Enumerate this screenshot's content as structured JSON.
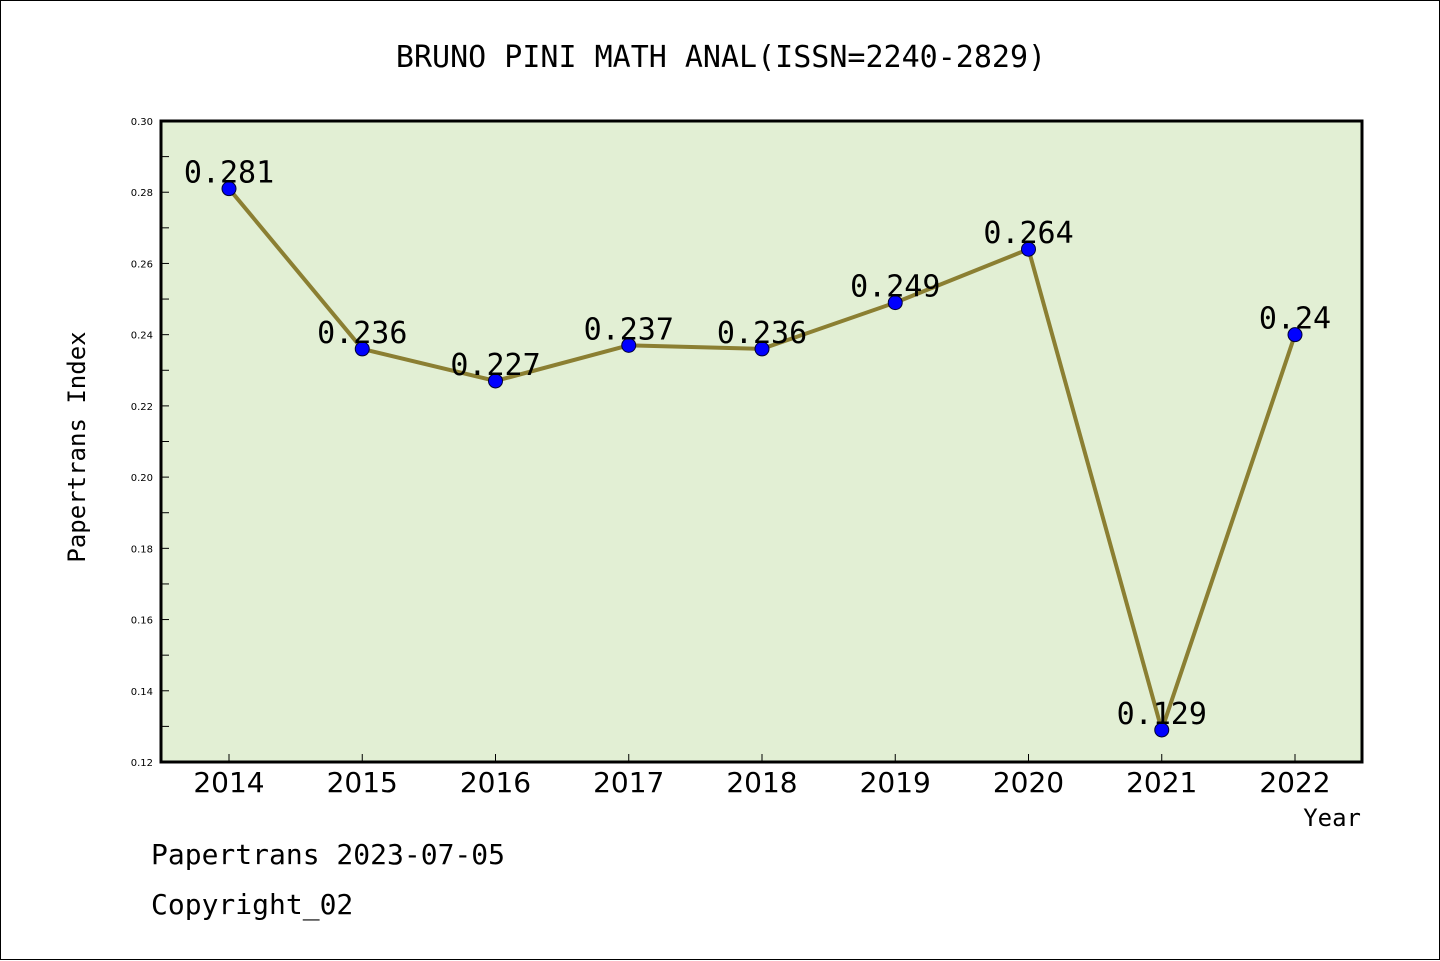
{
  "chart_data": {
    "type": "line",
    "title": "BRUNO PINI MATH ANAL(ISSN=2240-2829)",
    "xlabel": "Year",
    "ylabel": "Papertrans Index",
    "categories": [
      "2014",
      "2015",
      "2016",
      "2017",
      "2018",
      "2019",
      "2020",
      "2021",
      "2022"
    ],
    "values": [
      0.281,
      0.236,
      0.227,
      0.237,
      0.236,
      0.249,
      0.264,
      0.129,
      0.24
    ],
    "data_labels": [
      "0.281",
      "0.236",
      "0.227",
      "0.237",
      "0.236",
      "0.249",
      "0.264",
      "0.129",
      "0.24"
    ],
    "ylim": [
      0.12,
      0.3
    ],
    "yticks": [
      "0.12",
      "0.14",
      "0.16",
      "0.18",
      "0.20",
      "0.22",
      "0.24",
      "0.26",
      "0.28",
      "0.30"
    ],
    "grid": false,
    "colors": {
      "plot_background": "#e2efd4",
      "line": "#8b7f32",
      "marker": "#0000ff"
    }
  },
  "footer": {
    "line1": "Papertrans 2023-07-05",
    "line2": "Copyright_02"
  }
}
